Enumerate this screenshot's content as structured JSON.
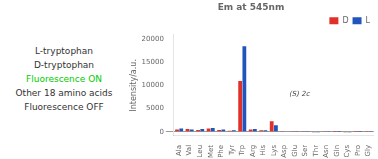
{
  "chart_data": {
    "type": "bar",
    "title": "Em at 545nm",
    "ylabel": "Intensity/a.u.",
    "categories": [
      "Ala",
      "Val",
      "Leu",
      "Met",
      "Phe",
      "Tyr",
      "Trp",
      "Arg",
      "His",
      "Lys",
      "Asp",
      "Glu",
      "Ser",
      "Thr",
      "Asn",
      "Gln",
      "Cys",
      "Pro",
      "Gly"
    ],
    "series": [
      {
        "name": "D",
        "color": "#e0302a",
        "values": [
          500,
          600,
          400,
          700,
          400,
          200,
          11000,
          500,
          300,
          2300,
          80,
          50,
          50,
          -80,
          30,
          20,
          -150,
          20,
          30
        ]
      },
      {
        "name": "L",
        "color": "#2255bb",
        "values": [
          700,
          500,
          600,
          800,
          500,
          350,
          18500,
          600,
          350,
          1400,
          100,
          80,
          80,
          -80,
          40,
          20,
          -80,
          20,
          40
        ]
      }
    ],
    "ylim": [
      -900,
      21000
    ],
    "yticks": [
      0,
      5000,
      10000,
      15000,
      20000
    ],
    "grid": false,
    "legend": "upper right",
    "annotations": [
      {
        "text": "L-tryptophan",
        "color": "#333333"
      },
      {
        "text": "D-tryptophan",
        "color": "#333333"
      },
      {
        "text": "Fluorescence ON",
        "color": "#00cc00"
      },
      {
        "text": "Other 18 amino acids",
        "color": "#333333"
      },
      {
        "text": "Fluorescence OFF",
        "color": "#333333"
      },
      {
        "text": "(S) 2c",
        "color": "#444444"
      }
    ]
  }
}
